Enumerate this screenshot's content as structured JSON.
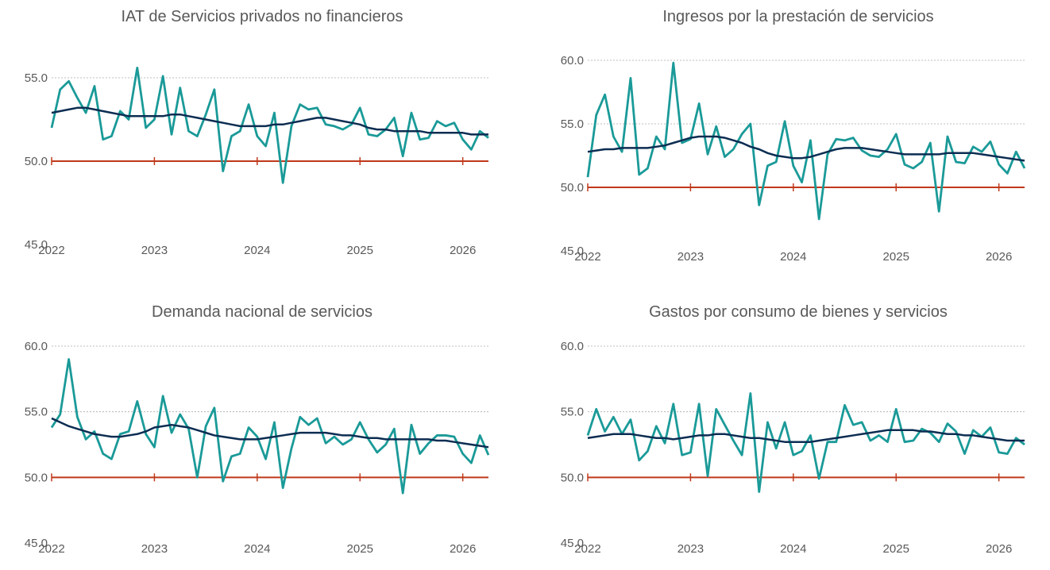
{
  "chart_data": [
    {
      "type": "line",
      "title": "IAT de Servicios privados no financieros",
      "x": [
        2022,
        2022.083,
        2022.167,
        2022.25,
        2022.333,
        2022.417,
        2022.5,
        2022.583,
        2022.667,
        2022.75,
        2022.833,
        2022.917,
        2023,
        2023.083,
        2023.167,
        2023.25,
        2023.333,
        2023.417,
        2023.5,
        2023.583,
        2023.667,
        2023.75,
        2023.833,
        2023.917,
        2024,
        2024.083,
        2024.167,
        2024.25,
        2024.333,
        2024.417,
        2024.5,
        2024.583,
        2024.667,
        2024.75,
        2024.833,
        2024.917,
        2025,
        2025.083,
        2025.167,
        2025.25,
        2025.333,
        2025.417,
        2025.5,
        2025.583,
        2025.667,
        2025.75,
        2025.833,
        2025.917,
        2026,
        2026.083,
        2026.167,
        2026.25
      ],
      "series": [
        {
          "color": "#1a9a98",
          "values": [
            52.0,
            54.3,
            54.8,
            53.8,
            52.9,
            54.5,
            51.3,
            51.5,
            53.0,
            52.5,
            55.6,
            52.0,
            52.5,
            55.1,
            51.6,
            54.4,
            51.8,
            51.5,
            52.8,
            54.3,
            49.4,
            51.5,
            51.8,
            53.4,
            51.5,
            50.9,
            52.9,
            48.7,
            52.1,
            53.4,
            53.1,
            53.2,
            52.2,
            52.1,
            51.9,
            52.2,
            53.2,
            51.6,
            51.5,
            51.9,
            52.6,
            50.3,
            52.9,
            51.3,
            51.4,
            52.4,
            52.1,
            52.3,
            51.3,
            50.7,
            51.8,
            51.4
          ]
        },
        {
          "color": "#0c2d52",
          "values": [
            52.9,
            53.0,
            53.1,
            53.2,
            53.2,
            53.1,
            53.0,
            52.9,
            52.8,
            52.7,
            52.7,
            52.7,
            52.7,
            52.7,
            52.8,
            52.8,
            52.7,
            52.6,
            52.5,
            52.4,
            52.3,
            52.2,
            52.1,
            52.1,
            52.1,
            52.1,
            52.2,
            52.2,
            52.3,
            52.4,
            52.5,
            52.6,
            52.6,
            52.5,
            52.4,
            52.3,
            52.2,
            52.0,
            51.9,
            51.9,
            51.8,
            51.8,
            51.8,
            51.8,
            51.7,
            51.7,
            51.7,
            51.7,
            51.7,
            51.6,
            51.6,
            51.6
          ]
        }
      ],
      "xlim": [
        2022,
        2026.25
      ],
      "xticks": [
        2022,
        2023,
        2024,
        2025,
        2026
      ],
      "ylim": [
        45,
        57.5
      ],
      "yticks": [
        {
          "value": 45,
          "label": "45.0"
        },
        {
          "value": 50,
          "label": "50.0"
        },
        {
          "value": 55,
          "label": "55.0"
        }
      ],
      "hline": 50,
      "hline_color": "#c0391b",
      "grid": true
    },
    {
      "type": "line",
      "title": "Ingresos por la prestación de servicios",
      "x": [
        2022,
        2022.083,
        2022.167,
        2022.25,
        2022.333,
        2022.417,
        2022.5,
        2022.583,
        2022.667,
        2022.75,
        2022.833,
        2022.917,
        2023,
        2023.083,
        2023.167,
        2023.25,
        2023.333,
        2023.417,
        2023.5,
        2023.583,
        2023.667,
        2023.75,
        2023.833,
        2023.917,
        2024,
        2024.083,
        2024.167,
        2024.25,
        2024.333,
        2024.417,
        2024.5,
        2024.583,
        2024.667,
        2024.75,
        2024.833,
        2024.917,
        2025,
        2025.083,
        2025.167,
        2025.25,
        2025.333,
        2025.417,
        2025.5,
        2025.583,
        2025.667,
        2025.75,
        2025.833,
        2025.917,
        2026,
        2026.083,
        2026.167,
        2026.25
      ],
      "series": [
        {
          "color": "#1a9a98",
          "values": [
            50.8,
            55.7,
            57.3,
            54.0,
            52.8,
            58.6,
            51.0,
            51.5,
            54.0,
            53.0,
            59.8,
            53.5,
            53.8,
            56.6,
            52.6,
            54.8,
            52.4,
            53.0,
            54.2,
            55.0,
            48.6,
            51.7,
            52.0,
            55.2,
            51.7,
            50.4,
            53.7,
            47.5,
            52.6,
            53.8,
            53.7,
            53.9,
            52.9,
            52.5,
            52.4,
            53.0,
            54.2,
            51.8,
            51.5,
            52.0,
            53.5,
            48.1,
            54.0,
            52.0,
            51.9,
            53.2,
            52.8,
            53.6,
            51.8,
            51.1,
            52.8,
            51.5
          ]
        },
        {
          "color": "#0c2d52",
          "values": [
            52.8,
            52.9,
            53.0,
            53.0,
            53.1,
            53.1,
            53.1,
            53.1,
            53.2,
            53.3,
            53.5,
            53.7,
            53.9,
            54.0,
            54.0,
            54.0,
            53.9,
            53.7,
            53.5,
            53.2,
            53.0,
            52.7,
            52.5,
            52.4,
            52.3,
            52.3,
            52.4,
            52.6,
            52.8,
            53.0,
            53.1,
            53.1,
            53.1,
            53.0,
            52.9,
            52.8,
            52.7,
            52.6,
            52.6,
            52.6,
            52.6,
            52.6,
            52.7,
            52.7,
            52.7,
            52.7,
            52.6,
            52.5,
            52.4,
            52.3,
            52.2,
            52.1
          ]
        }
      ],
      "xlim": [
        2022,
        2026.25
      ],
      "xticks": [
        2022,
        2023,
        2024,
        2025,
        2026
      ],
      "ylim": [
        45,
        60
      ],
      "yticks": [
        {
          "value": 45,
          "label": "45.0"
        },
        {
          "value": 50,
          "label": "50.0"
        },
        {
          "value": 55,
          "label": "55.0"
        },
        {
          "value": 60,
          "label": "60.0"
        }
      ],
      "hline": 50,
      "hline_color": "#c0391b",
      "grid": true
    },
    {
      "type": "line",
      "title": "Demanda nacional de servicios",
      "x": [
        2022,
        2022.083,
        2022.167,
        2022.25,
        2022.333,
        2022.417,
        2022.5,
        2022.583,
        2022.667,
        2022.75,
        2022.833,
        2022.917,
        2023,
        2023.083,
        2023.167,
        2023.25,
        2023.333,
        2023.417,
        2023.5,
        2023.583,
        2023.667,
        2023.75,
        2023.833,
        2023.917,
        2024,
        2024.083,
        2024.167,
        2024.25,
        2024.333,
        2024.417,
        2024.5,
        2024.583,
        2024.667,
        2024.75,
        2024.833,
        2024.917,
        2025,
        2025.083,
        2025.167,
        2025.25,
        2025.333,
        2025.417,
        2025.5,
        2025.583,
        2025.667,
        2025.75,
        2025.833,
        2025.917,
        2026,
        2026.083,
        2026.167,
        2026.25
      ],
      "series": [
        {
          "color": "#1a9a98",
          "values": [
            53.8,
            54.8,
            59.0,
            54.6,
            52.9,
            53.5,
            51.8,
            51.4,
            53.3,
            53.5,
            55.8,
            53.3,
            52.3,
            56.2,
            53.4,
            54.8,
            53.7,
            50.0,
            53.9,
            55.3,
            49.7,
            51.6,
            51.8,
            53.8,
            53.1,
            51.4,
            54.2,
            49.2,
            52.2,
            54.6,
            54.0,
            54.5,
            52.6,
            53.1,
            52.5,
            52.9,
            54.2,
            52.9,
            51.9,
            52.5,
            53.7,
            48.8,
            54.0,
            51.8,
            52.6,
            53.2,
            53.2,
            53.1,
            51.8,
            51.1,
            53.2,
            51.7
          ]
        },
        {
          "color": "#0c2d52",
          "values": [
            54.5,
            54.2,
            53.9,
            53.7,
            53.5,
            53.3,
            53.2,
            53.1,
            53.1,
            53.2,
            53.3,
            53.5,
            53.8,
            53.9,
            54.0,
            53.9,
            53.8,
            53.6,
            53.4,
            53.2,
            53.1,
            53.0,
            52.9,
            52.9,
            52.9,
            53.0,
            53.1,
            53.2,
            53.3,
            53.4,
            53.4,
            53.4,
            53.4,
            53.3,
            53.2,
            53.2,
            53.1,
            53.0,
            53.0,
            52.9,
            52.9,
            52.9,
            52.9,
            52.9,
            52.9,
            52.8,
            52.8,
            52.7,
            52.6,
            52.5,
            52.4,
            52.3
          ]
        }
      ],
      "xlim": [
        2022,
        2026.25
      ],
      "xticks": [
        2022,
        2023,
        2024,
        2025,
        2026
      ],
      "ylim": [
        45,
        60
      ],
      "yticks": [
        {
          "value": 45,
          "label": "45.0"
        },
        {
          "value": 50,
          "label": "50.0"
        },
        {
          "value": 55,
          "label": "55.0"
        },
        {
          "value": 60,
          "label": "60.0"
        }
      ],
      "hline": 50,
      "hline_color": "#c0391b",
      "grid": true
    },
    {
      "type": "line",
      "title": "Gastos por consumo de bienes y servicios",
      "x": [
        2022,
        2022.083,
        2022.167,
        2022.25,
        2022.333,
        2022.417,
        2022.5,
        2022.583,
        2022.667,
        2022.75,
        2022.833,
        2022.917,
        2023,
        2023.083,
        2023.167,
        2023.25,
        2023.333,
        2023.417,
        2023.5,
        2023.583,
        2023.667,
        2023.75,
        2023.833,
        2023.917,
        2024,
        2024.083,
        2024.167,
        2024.25,
        2024.333,
        2024.417,
        2024.5,
        2024.583,
        2024.667,
        2024.75,
        2024.833,
        2024.917,
        2025,
        2025.083,
        2025.167,
        2025.25,
        2025.333,
        2025.417,
        2025.5,
        2025.583,
        2025.667,
        2025.75,
        2025.833,
        2025.917,
        2026,
        2026.083,
        2026.167,
        2026.25
      ],
      "series": [
        {
          "color": "#1a9a98",
          "values": [
            53.2,
            55.2,
            53.5,
            54.6,
            53.3,
            54.4,
            51.3,
            52.0,
            53.9,
            52.6,
            55.6,
            51.7,
            51.9,
            55.6,
            50.1,
            55.2,
            54.0,
            52.8,
            51.7,
            56.4,
            48.9,
            54.2,
            52.2,
            54.2,
            51.7,
            52.0,
            53.2,
            49.9,
            52.7,
            52.7,
            55.5,
            54.0,
            54.2,
            52.8,
            53.2,
            52.7,
            55.2,
            52.7,
            52.8,
            53.7,
            53.4,
            52.7,
            54.1,
            53.5,
            51.8,
            53.6,
            53.1,
            53.8,
            51.9,
            51.8,
            53.0,
            52.5
          ]
        },
        {
          "color": "#0c2d52",
          "values": [
            53.0,
            53.1,
            53.2,
            53.3,
            53.3,
            53.3,
            53.2,
            53.1,
            53.0,
            53.0,
            52.9,
            53.0,
            53.1,
            53.2,
            53.2,
            53.3,
            53.3,
            53.2,
            53.1,
            53.0,
            53.0,
            52.9,
            52.8,
            52.7,
            52.7,
            52.7,
            52.7,
            52.8,
            52.9,
            53.0,
            53.1,
            53.2,
            53.3,
            53.4,
            53.5,
            53.6,
            53.6,
            53.6,
            53.6,
            53.5,
            53.5,
            53.4,
            53.3,
            53.3,
            53.2,
            53.2,
            53.1,
            53.0,
            52.9,
            52.8,
            52.8,
            52.8
          ]
        }
      ],
      "xlim": [
        2022,
        2026.25
      ],
      "xticks": [
        2022,
        2023,
        2024,
        2025,
        2026
      ],
      "ylim": [
        45,
        60
      ],
      "yticks": [
        {
          "value": 45,
          "label": "45.0"
        },
        {
          "value": 50,
          "label": "50.0"
        },
        {
          "value": 55,
          "label": "55.0"
        },
        {
          "value": 60,
          "label": "60.0"
        }
      ],
      "hline": 50,
      "hline_color": "#c0391b",
      "grid": true
    }
  ]
}
